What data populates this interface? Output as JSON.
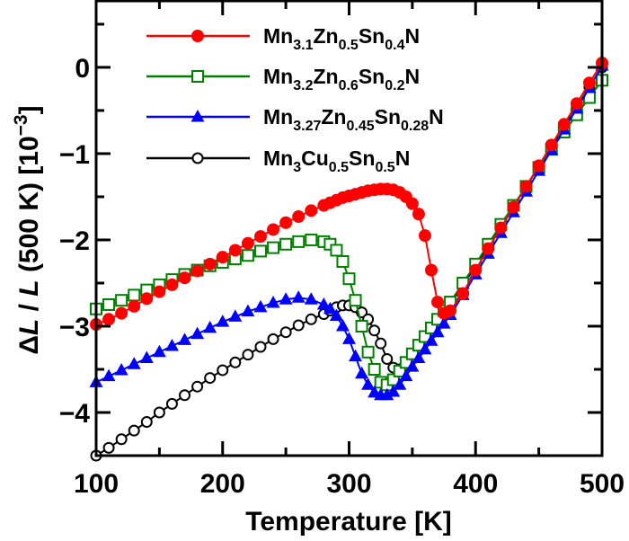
{
  "chart_data": {
    "type": "line",
    "xlabel": "Temperature [K]",
    "ylabel": {
      "delta": "Δ",
      "var": "L",
      "slash": " / ",
      "var2": "L",
      "ref": " (500 K) [10",
      "exp": "−3",
      "close": "]"
    },
    "xlim": [
      100,
      500
    ],
    "ylim": [
      -4.5,
      0.77
    ],
    "xticks": [
      "100",
      "200",
      "300",
      "400",
      "500"
    ],
    "yticks": [
      "0",
      "−1",
      "−2",
      "−3",
      "−4"
    ],
    "grid": false,
    "legend_position": "top-left",
    "x": [
      100,
      110,
      120,
      130,
      140,
      150,
      160,
      170,
      180,
      190,
      200,
      210,
      220,
      230,
      240,
      250,
      260,
      270,
      280,
      285,
      290,
      295,
      300,
      305,
      310,
      315,
      320,
      325,
      330,
      335,
      340,
      345,
      350,
      355,
      360,
      365,
      370,
      375,
      380,
      390,
      400,
      410,
      420,
      430,
      440,
      450,
      460,
      470,
      480,
      490,
      500
    ],
    "series": [
      {
        "name": "Mn3.1Zn0.5Sn0.4N",
        "color": "#ff0000",
        "marker": "filled-circle",
        "values": [
          -2.98,
          -2.92,
          -2.85,
          -2.77,
          -2.68,
          -2.6,
          -2.52,
          -2.44,
          -2.36,
          -2.28,
          -2.2,
          -2.12,
          -2.04,
          -1.96,
          -1.88,
          -1.8,
          -1.73,
          -1.66,
          -1.6,
          -1.57,
          -1.54,
          -1.51,
          -1.49,
          -1.47,
          -1.45,
          -1.43,
          -1.42,
          -1.41,
          -1.41,
          -1.42,
          -1.45,
          -1.5,
          -1.58,
          -1.7,
          -1.95,
          -2.35,
          -2.72,
          -2.85,
          -2.82,
          -2.62,
          -2.35,
          -2.1,
          -1.86,
          -1.62,
          -1.38,
          -1.14,
          -0.9,
          -0.66,
          -0.42,
          -0.18,
          0.05
        ]
      },
      {
        "name": "Mn3.2Zn0.6Sn0.2N",
        "color": "#008000",
        "marker": "open-square",
        "values": [
          -2.8,
          -2.75,
          -2.7,
          -2.64,
          -2.58,
          -2.52,
          -2.46,
          -2.4,
          -2.35,
          -2.3,
          -2.26,
          -2.22,
          -2.18,
          -2.13,
          -2.09,
          -2.05,
          -2.02,
          -2.0,
          -2.02,
          -2.05,
          -2.12,
          -2.25,
          -2.45,
          -2.7,
          -3.0,
          -3.3,
          -3.5,
          -3.65,
          -3.68,
          -3.62,
          -3.52,
          -3.42,
          -3.32,
          -3.22,
          -3.12,
          -3.02,
          -2.92,
          -2.82,
          -2.72,
          -2.5,
          -2.28,
          -2.05,
          -1.82,
          -1.6,
          -1.38,
          -1.16,
          -0.95,
          -0.75,
          -0.55,
          -0.35,
          -0.15
        ]
      },
      {
        "name": "Mn3.27Zn0.45Sn0.28N",
        "color": "#0000ff",
        "marker": "filled-triangle",
        "values": [
          -3.65,
          -3.58,
          -3.51,
          -3.44,
          -3.37,
          -3.3,
          -3.23,
          -3.16,
          -3.09,
          -3.02,
          -2.95,
          -2.89,
          -2.83,
          -2.78,
          -2.73,
          -2.69,
          -2.67,
          -2.69,
          -2.75,
          -2.8,
          -2.88,
          -3.0,
          -3.15,
          -3.35,
          -3.55,
          -3.68,
          -3.77,
          -3.8,
          -3.8,
          -3.76,
          -3.68,
          -3.58,
          -3.47,
          -3.37,
          -3.27,
          -3.17,
          -3.07,
          -2.97,
          -2.87,
          -2.64,
          -2.4,
          -2.16,
          -1.92,
          -1.68,
          -1.44,
          -1.2,
          -0.96,
          -0.72,
          -0.48,
          -0.24,
          0.02
        ]
      },
      {
        "name": "Mn3Cu0.5Sn0.5N",
        "color": "#000000",
        "marker": "open-circle",
        "values": [
          -4.5,
          -4.41,
          -4.31,
          -4.21,
          -4.11,
          -4.0,
          -3.9,
          -3.8,
          -3.7,
          -3.6,
          -3.51,
          -3.42,
          -3.33,
          -3.24,
          -3.15,
          -3.07,
          -2.99,
          -2.92,
          -2.86,
          -2.82,
          -2.78,
          -2.76,
          -2.76,
          -2.78,
          -2.84,
          -2.92,
          -3.05,
          -3.2,
          -3.38,
          -3.48,
          -3.5,
          -3.45,
          -3.38,
          -3.28,
          -3.18,
          -3.08,
          -2.97,
          -2.86,
          -2.75,
          -2.53,
          -2.3,
          -2.07,
          -1.84,
          -1.61,
          -1.38,
          -1.15,
          -0.92,
          -0.69,
          -0.46,
          -0.23,
          0.0
        ]
      }
    ]
  }
}
